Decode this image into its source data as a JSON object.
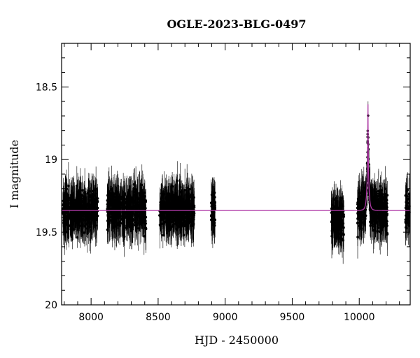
{
  "chart_data": {
    "type": "scatter",
    "title": "OGLE-2023-BLG-0497",
    "xlabel": "HJD - 2450000",
    "ylabel": "I magnitude",
    "xlim": [
      7780,
      10380
    ],
    "ylim": [
      20.0,
      18.2
    ],
    "y_inverted": true,
    "xticks": [
      8000,
      8500,
      9000,
      9500,
      10000
    ],
    "yticks": [
      18.5,
      19,
      19.5,
      20
    ],
    "ytick_labels": [
      "18.5",
      "19",
      "19.5",
      "20"
    ],
    "baseline_mag": 19.35,
    "seasons": [
      {
        "x_start": 7790,
        "x_end": 8050,
        "mean_mag": 19.35
      },
      {
        "x_start": 8120,
        "x_end": 8410,
        "mean_mag": 19.35
      },
      {
        "x_start": 8510,
        "x_end": 8770,
        "mean_mag": 19.35
      },
      {
        "x_start": 8895,
        "x_end": 8925,
        "mean_mag": 19.35
      },
      {
        "x_start": 9790,
        "x_end": 9885,
        "mean_mag": 19.4
      },
      {
        "x_start": 9985,
        "x_end": 10210,
        "mean_mag": 19.32
      },
      {
        "x_start": 10345,
        "x_end": 10375,
        "mean_mag": 19.35
      }
    ],
    "event": {
      "peak_hjd": 10065,
      "peak_mag": 18.62,
      "tE_days": 14
    },
    "model_line": {
      "name": "",
      "color": "#b03aa7"
    },
    "point_color": "#000000",
    "grid": false
  }
}
